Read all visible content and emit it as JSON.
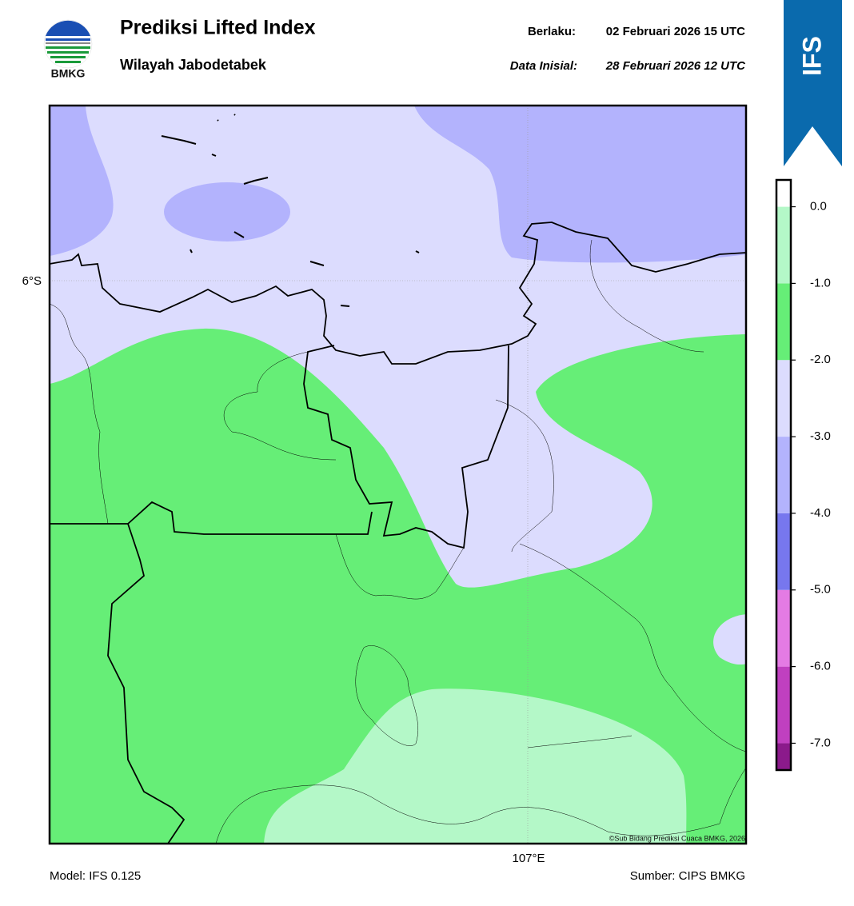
{
  "header": {
    "logo_text": "BMKG",
    "title": "Prediksi Lifted Index",
    "subtitle": "Wilayah Jabodetabek",
    "valid_label": "Berlaku:",
    "valid_time": "02 Februari 2026 15 UTC",
    "init_label": "Data Inisial:",
    "init_time": "28 Februari 2026 12 UTC",
    "badge": "IFS"
  },
  "map": {
    "lat_label": "6°S",
    "lon_label": "107°E",
    "credit": "©Sub Bidang Prediksi Cuaca BMKG, 2026"
  },
  "colorbar": {
    "bins": [
      -7.35,
      -7,
      -6,
      -5,
      -4,
      -3,
      -2,
      -1,
      0,
      0.35
    ],
    "colors": [
      "#8b1a8b",
      "#c040c0",
      "#e47be4",
      "#7777ee",
      "#b3b3fd",
      "#dcdcfe",
      "#66ee77",
      "#b4f8c8",
      "#ffffff"
    ],
    "ticks": [
      {
        "value": 0,
        "label": "0.0"
      },
      {
        "value": -1,
        "label": "-1.0"
      },
      {
        "value": -2,
        "label": "-2.0"
      },
      {
        "value": -3,
        "label": "-3.0"
      },
      {
        "value": -4,
        "label": "-4.0"
      },
      {
        "value": -5,
        "label": "-5.0"
      },
      {
        "value": -6,
        "label": "-6.0"
      },
      {
        "value": -7,
        "label": "-7.0"
      }
    ]
  },
  "footer": {
    "model": "Model: IFS 0.125",
    "source": "Sumber: CIPS BMKG"
  }
}
